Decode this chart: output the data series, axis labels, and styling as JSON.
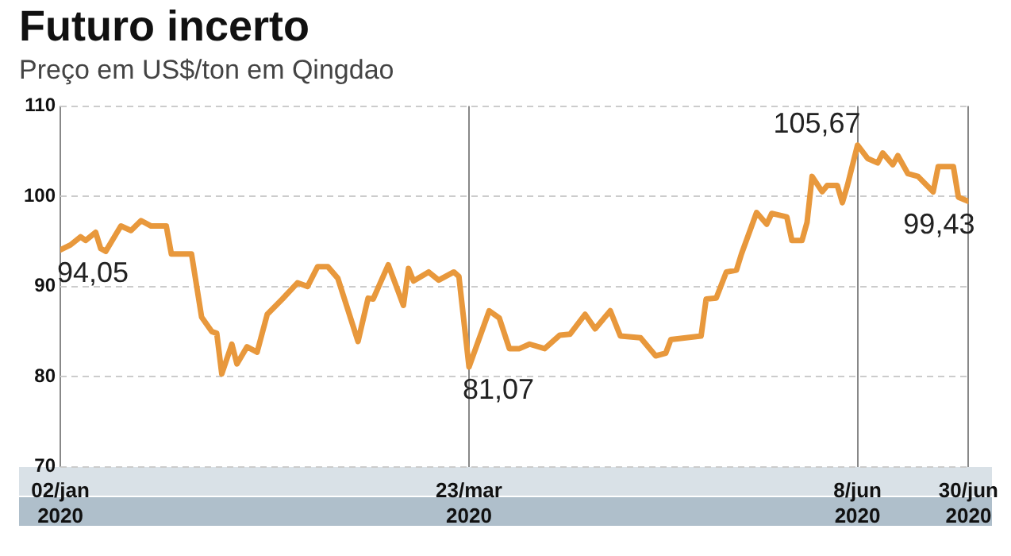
{
  "chart_data": {
    "type": "line",
    "title": "Futuro incerto",
    "subtitle": "Preço em US$/ton em Qingdao",
    "x": [
      "2020-01-02",
      "2020-01-04",
      "2020-01-06",
      "2020-01-07",
      "2020-01-09",
      "2020-01-10",
      "2020-01-11",
      "2020-01-14",
      "2020-01-16",
      "2020-01-18",
      "2020-01-20",
      "2020-01-23",
      "2020-01-24",
      "2020-01-28",
      "2020-01-30",
      "2020-02-01",
      "2020-02-02",
      "2020-02-03",
      "2020-02-05",
      "2020-02-06",
      "2020-02-08",
      "2020-02-10",
      "2020-02-12",
      "2020-02-15",
      "2020-02-18",
      "2020-02-20",
      "2020-02-22",
      "2020-02-24",
      "2020-02-26",
      "2020-03-01",
      "2020-03-03",
      "2020-03-04",
      "2020-03-07",
      "2020-03-10",
      "2020-03-11",
      "2020-03-12",
      "2020-03-15",
      "2020-03-17",
      "2020-03-20",
      "2020-03-21",
      "2020-03-23",
      "2020-03-27",
      "2020-03-29",
      "2020-03-31",
      "2020-04-02",
      "2020-04-04",
      "2020-04-07",
      "2020-04-10",
      "2020-04-12",
      "2020-04-15",
      "2020-04-17",
      "2020-04-20",
      "2020-04-22",
      "2020-04-26",
      "2020-04-29",
      "2020-05-01",
      "2020-05-02",
      "2020-05-08",
      "2020-05-09",
      "2020-05-11",
      "2020-05-13",
      "2020-05-15",
      "2020-05-16",
      "2020-05-19",
      "2020-05-21",
      "2020-05-22",
      "2020-05-25",
      "2020-05-26",
      "2020-05-28",
      "2020-05-29",
      "2020-05-30",
      "2020-06-01",
      "2020-06-02",
      "2020-06-04",
      "2020-06-05",
      "2020-06-06",
      "2020-06-08",
      "2020-06-10",
      "2020-06-12",
      "2020-06-13",
      "2020-06-15",
      "2020-06-16",
      "2020-06-18",
      "2020-06-20",
      "2020-06-23",
      "2020-06-24",
      "2020-06-27",
      "2020-06-28",
      "2020-06-30"
    ],
    "series": [
      {
        "color": "#e8983c",
        "values": [
          94.05,
          94.6,
          95.5,
          95.1,
          96.0,
          94.2,
          93.9,
          96.7,
          96.2,
          97.3,
          96.7,
          96.7,
          93.6,
          93.6,
          86.6,
          85.0,
          84.8,
          80.3,
          83.6,
          81.4,
          83.3,
          82.7,
          86.9,
          88.6,
          90.4,
          90.0,
          92.2,
          92.2,
          90.9,
          83.9,
          88.7,
          88.6,
          92.4,
          87.9,
          92.0,
          90.6,
          91.6,
          90.7,
          91.6,
          91.1,
          81.07,
          87.3,
          86.5,
          83.1,
          83.1,
          83.6,
          83.1,
          84.6,
          84.7,
          86.9,
          85.3,
          87.3,
          84.5,
          84.3,
          82.3,
          82.6,
          84.1,
          84.5,
          88.6,
          88.7,
          91.6,
          91.8,
          93.6,
          98.2,
          96.9,
          98.1,
          97.7,
          95.1,
          95.1,
          97.1,
          102.2,
          100.5,
          101.2,
          101.2,
          99.3,
          101.2,
          105.67,
          104.2,
          103.7,
          104.8,
          103.5,
          104.5,
          102.5,
          102.2,
          100.5,
          103.3,
          103.3,
          99.9,
          99.43
        ],
        "value_labels": [
          "94,05",
          null,
          null,
          null,
          null,
          null,
          null,
          null,
          null,
          null,
          null,
          null,
          null,
          null,
          null,
          null,
          null,
          null,
          null,
          null,
          null,
          null,
          null,
          null,
          null,
          null,
          null,
          null,
          null,
          null,
          null,
          null,
          null,
          null,
          null,
          null,
          null,
          null,
          null,
          null,
          "81,07",
          null,
          null,
          null,
          null,
          null,
          null,
          null,
          null,
          null,
          null,
          null,
          null,
          null,
          null,
          null,
          null,
          null,
          null,
          null,
          null,
          null,
          null,
          null,
          null,
          null,
          null,
          null,
          null,
          null,
          null,
          null,
          null,
          null,
          null,
          null,
          "105,67",
          null,
          null,
          null,
          null,
          null,
          null,
          null,
          null,
          null,
          null,
          null,
          "99,43"
        ]
      }
    ],
    "xlim": [
      "2020-01-02",
      "2020-06-30"
    ],
    "xticks": [
      {
        "value": "2020-01-02",
        "label": "02/jan 2020"
      },
      {
        "value": "2020-03-23",
        "label": "23/mar 2020"
      },
      {
        "value": "2020-06-08",
        "label": "8/jun 2020"
      },
      {
        "value": "2020-06-30",
        "label": "30/jun 2020"
      }
    ],
    "ylim": [
      70,
      110
    ],
    "yticks": [
      70,
      80,
      90,
      100,
      110
    ],
    "grid": true,
    "legend": false,
    "marker": "none",
    "line_style": "solid"
  }
}
